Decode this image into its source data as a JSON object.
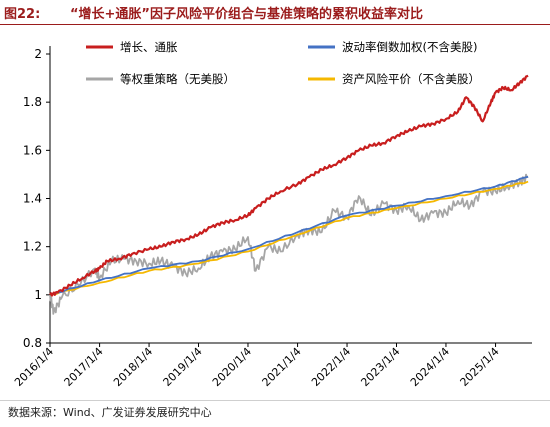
{
  "figure_label": "图22:",
  "title": "“增长+通胀”因子风险平价组合与基准策略的累积收益率对比",
  "source": "数据来源：Wind、广发证券发展研究中心",
  "colors": {
    "title": "#9b1c1c",
    "growth_inflation": "#c81e1e",
    "volatility_inverse": "#4472c4",
    "equal_weight": "#a6a6a6",
    "asset_risk_parity": "#f5b800"
  },
  "chart_data": {
    "type": "line",
    "title": "",
    "xlabel": "",
    "ylabel": "",
    "ylim": [
      0.8,
      2.0
    ],
    "yticks": [
      "0.8",
      "1",
      "1.2",
      "1.4",
      "1.6",
      "1.8",
      "2"
    ],
    "xticks": [
      "2016/1/4",
      "2017/1/4",
      "2018/1/4",
      "2019/1/4",
      "2020/1/4",
      "2021/1/4",
      "2022/1/4",
      "2023/1/4",
      "2024/1/4",
      "2025/1/4"
    ],
    "grid": false,
    "legend": "top",
    "series": [
      {
        "name": "增长、通胀",
        "color": "#c81e1e",
        "x": [
          "2016/1/4",
          "2016/3/1",
          "2016/6/1",
          "2016/9/1",
          "2016/12/1",
          "2017/1/4",
          "2017/3/1",
          "2017/6/1",
          "2017/9/1",
          "2018/1/4",
          "2018/4/1",
          "2018/7/1",
          "2018/10/1",
          "2019/1/4",
          "2019/4/1",
          "2019/7/1",
          "2019/10/1",
          "2020/1/4",
          "2020/3/1",
          "2020/6/1",
          "2020/9/1",
          "2021/1/4",
          "2021/4/1",
          "2021/7/1",
          "2021/10/1",
          "2022/1/4",
          "2022/4/1",
          "2022/7/1",
          "2022/10/1",
          "2023/1/4",
          "2023/4/1",
          "2023/7/1",
          "2023/10/1",
          "2024/1/4",
          "2024/4/1",
          "2024/6/1",
          "2024/8/1",
          "2024/10/1",
          "2024/12/1",
          "2025/1/4",
          "2025/3/1",
          "2025/5/1",
          "2025/7/1",
          "2025/9/1"
        ],
        "y": [
          1.0,
          1.01,
          1.04,
          1.07,
          1.1,
          1.11,
          1.14,
          1.15,
          1.17,
          1.19,
          1.2,
          1.22,
          1.23,
          1.25,
          1.28,
          1.3,
          1.31,
          1.33,
          1.36,
          1.4,
          1.43,
          1.46,
          1.49,
          1.52,
          1.54,
          1.57,
          1.6,
          1.62,
          1.63,
          1.66,
          1.68,
          1.7,
          1.71,
          1.73,
          1.76,
          1.82,
          1.78,
          1.72,
          1.8,
          1.84,
          1.86,
          1.85,
          1.88,
          1.91
        ]
      },
      {
        "name": "波动率倒数加权(不含美股)",
        "color": "#4472c4",
        "x": [
          "2016/1/4",
          "2017/1/4",
          "2018/1/4",
          "2019/1/4",
          "2020/1/4",
          "2021/1/4",
          "2022/1/4",
          "2023/1/4",
          "2024/1/4",
          "2025/1/4",
          "2025/9/1"
        ],
        "y": [
          1.0,
          1.06,
          1.11,
          1.14,
          1.19,
          1.26,
          1.33,
          1.37,
          1.41,
          1.45,
          1.49
        ]
      },
      {
        "name": "等权重策略（无美股）",
        "color": "#a6a6a6",
        "x": [
          "2016/1/4",
          "2016/2/1",
          "2016/4/1",
          "2016/8/1",
          "2016/12/1",
          "2017/1/4",
          "2017/4/1",
          "2017/7/1",
          "2017/10/1",
          "2018/1/4",
          "2018/4/1",
          "2018/7/1",
          "2018/10/1",
          "2019/1/4",
          "2019/4/1",
          "2019/7/1",
          "2019/10/1",
          "2020/1/4",
          "2020/3/1",
          "2020/6/1",
          "2020/9/1",
          "2021/1/4",
          "2021/4/1",
          "2021/7/1",
          "2021/10/1",
          "2022/1/4",
          "2022/4/1",
          "2022/7/1",
          "2022/10/1",
          "2023/1/4",
          "2023/4/1",
          "2023/7/1",
          "2023/10/1",
          "2024/1/4",
          "2024/4/1",
          "2024/7/1",
          "2024/10/1",
          "2025/1/4",
          "2025/4/1",
          "2025/7/1",
          "2025/9/1"
        ],
        "y": [
          1.0,
          0.93,
          0.99,
          1.04,
          1.11,
          1.07,
          1.14,
          1.15,
          1.14,
          1.13,
          1.14,
          1.12,
          1.09,
          1.11,
          1.16,
          1.18,
          1.19,
          1.24,
          1.1,
          1.2,
          1.18,
          1.25,
          1.27,
          1.26,
          1.35,
          1.32,
          1.41,
          1.33,
          1.38,
          1.35,
          1.37,
          1.31,
          1.34,
          1.34,
          1.39,
          1.37,
          1.43,
          1.43,
          1.45,
          1.47,
          1.49
        ]
      },
      {
        "name": "资产风险平价（不含美股）",
        "color": "#f5b800",
        "x": [
          "2016/1/4",
          "2017/1/4",
          "2018/1/4",
          "2019/1/4",
          "2020/1/4",
          "2021/1/4",
          "2022/1/4",
          "2023/1/4",
          "2024/1/4",
          "2025/1/4",
          "2025/9/1"
        ],
        "y": [
          1.0,
          1.05,
          1.1,
          1.13,
          1.18,
          1.25,
          1.32,
          1.36,
          1.4,
          1.44,
          1.47
        ]
      }
    ]
  }
}
